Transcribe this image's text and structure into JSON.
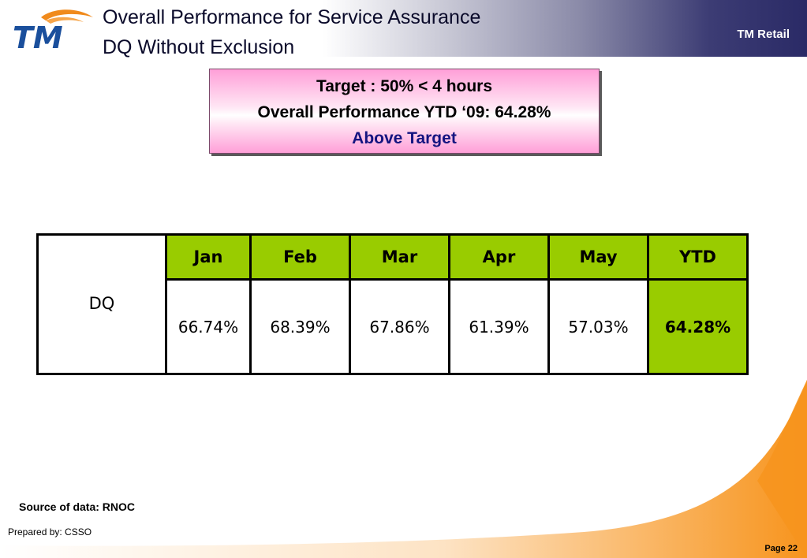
{
  "header": {
    "logo_text": "TM",
    "title_line1": "Overall Performance for Service Assurance",
    "title_line2": "DQ Without Exclusion",
    "company": "TM Retail"
  },
  "target_box": {
    "line1": "Target : 50% < 4 hours",
    "line2": "Overall Performance YTD ‘09: 64.28%",
    "line3": "Above Target"
  },
  "table": {
    "row_label": "DQ",
    "headers": [
      "Jan",
      "Feb",
      "Mar",
      "Apr",
      "May",
      "YTD"
    ],
    "values": [
      "66.74%",
      "68.39%",
      "67.86%",
      "61.39%",
      "57.03%",
      "64.28%"
    ]
  },
  "footer": {
    "source": "Source of data: RNOC",
    "prepared_by": "Prepared by: CSSO",
    "page": "Page 22"
  },
  "colors": {
    "header_green": "#99cc00",
    "target_pink": "#ff9fd8",
    "above_target_text": "#141480",
    "logo_blue": "#1a4f9c",
    "logo_orange": "#f08a1c",
    "swoosh_orange": "#f7941d"
  }
}
